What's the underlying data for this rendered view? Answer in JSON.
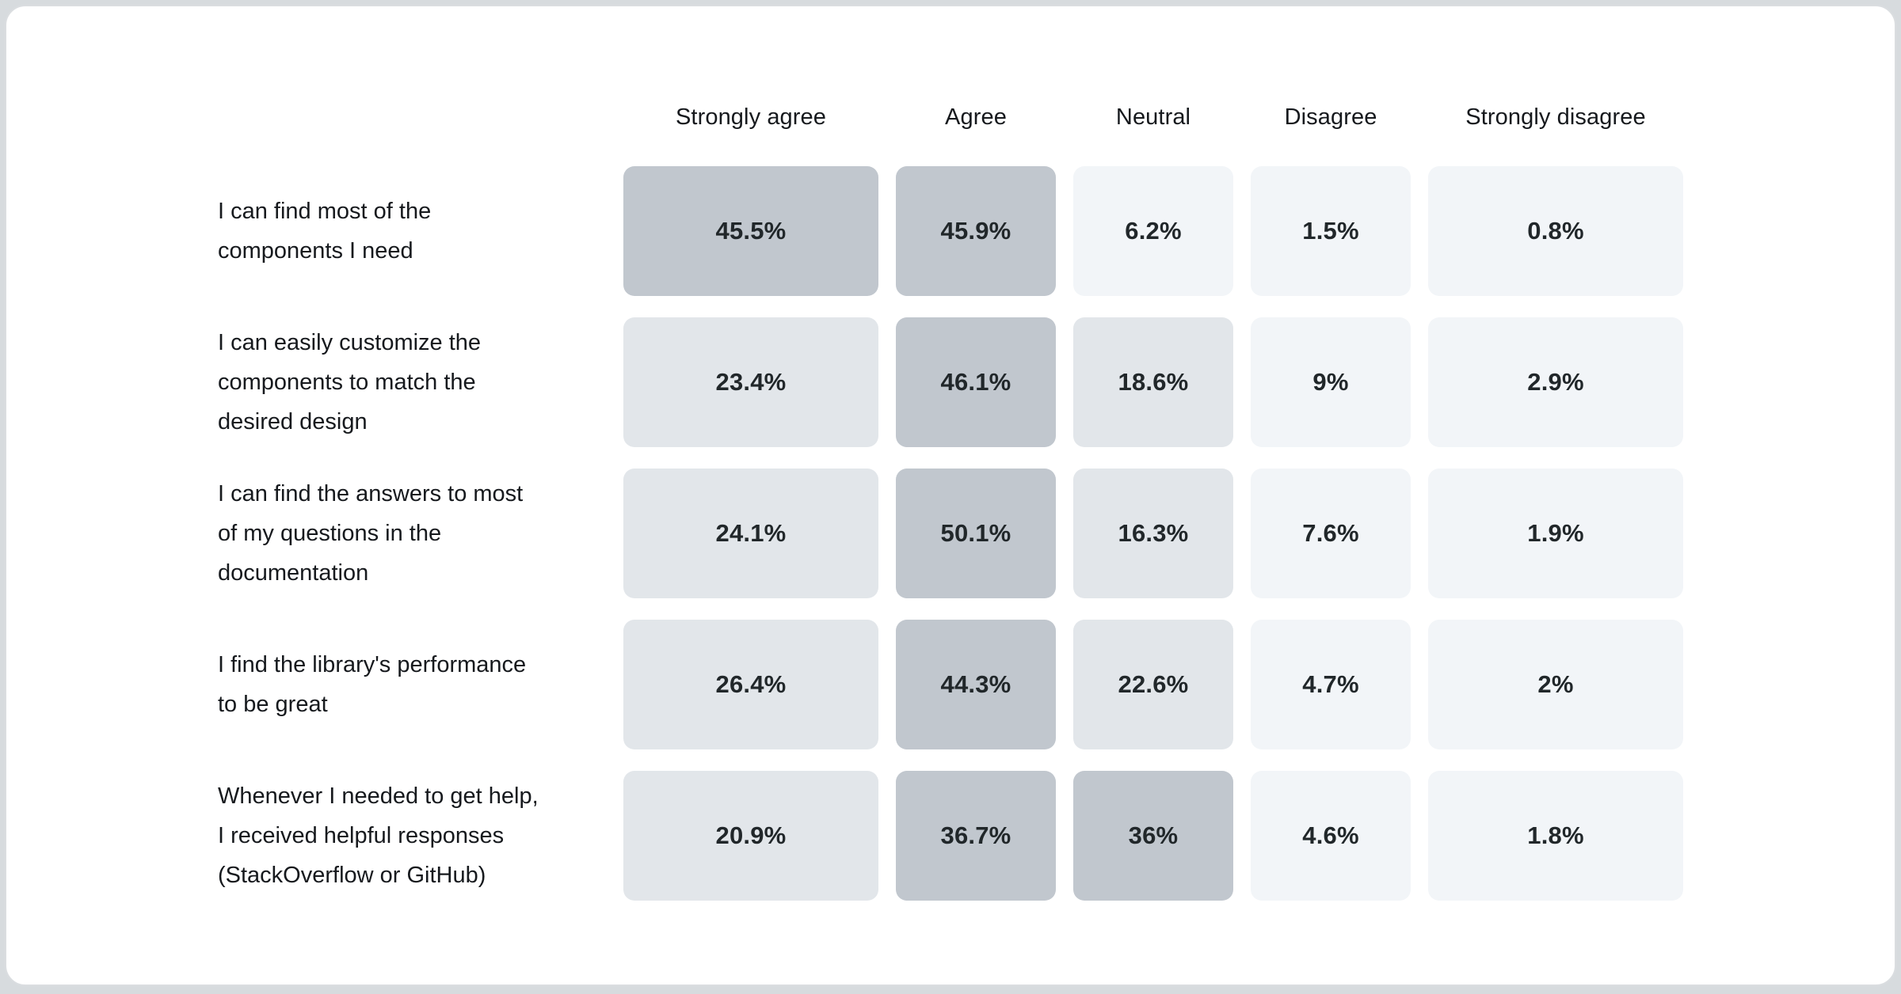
{
  "palette": {
    "page_background": "#d7dbde",
    "card_background": "#ffffff",
    "card_border": "#dadde0",
    "header_text": "#16191d",
    "label_text": "#16191d",
    "value_text": "#21272a",
    "scale": [
      {
        "min": 30,
        "color": "#c1c7ce"
      },
      {
        "min": 12,
        "color": "#e2e6ea"
      },
      {
        "min": 0,
        "color": "#f2f5f8"
      }
    ]
  },
  "chart_data": {
    "type": "heatmap",
    "title": "",
    "legend": "none",
    "columns": [
      "Strongly agree",
      "Agree",
      "Neutral",
      "Disagree",
      "Strongly disagree"
    ],
    "rows": [
      {
        "label": "I can find most of the\ncomponents I need",
        "values": [
          45.5,
          45.9,
          6.2,
          1.5,
          0.8
        ],
        "display": [
          "45.5%",
          "45.9%",
          "6.2%",
          "1.5%",
          "0.8%"
        ]
      },
      {
        "label": "I can easily customize the\ncomponents to match the\ndesired design",
        "values": [
          23.4,
          46.1,
          18.6,
          9,
          2.9
        ],
        "display": [
          "23.4%",
          "46.1%",
          "18.6%",
          "9%",
          "2.9%"
        ]
      },
      {
        "label": "I can find the answers to most\nof my questions in the\ndocumentation",
        "values": [
          24.1,
          50.1,
          16.3,
          7.6,
          1.9
        ],
        "display": [
          "24.1%",
          "50.1%",
          "16.3%",
          "7.6%",
          "1.9%"
        ]
      },
      {
        "label": "I find the library's performance\nto be great",
        "values": [
          26.4,
          44.3,
          22.6,
          4.7,
          2
        ],
        "display": [
          "26.4%",
          "44.3%",
          "22.6%",
          "4.7%",
          "2%"
        ]
      },
      {
        "label": "Whenever I needed to get help,\nI received helpful responses\n(StackOverflow or GitHub)",
        "values": [
          20.9,
          36.7,
          36,
          4.6,
          1.8
        ],
        "display": [
          "20.9%",
          "36.7%",
          "36%",
          "4.6%",
          "1.8%"
        ]
      }
    ]
  }
}
